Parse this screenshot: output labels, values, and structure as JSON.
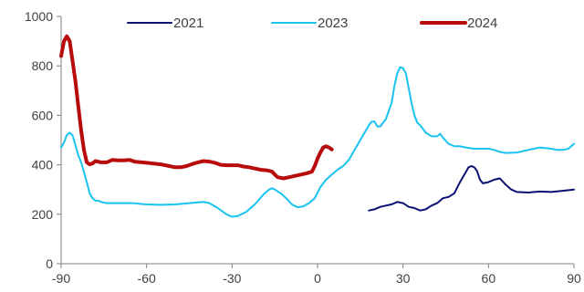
{
  "chart_data": {
    "type": "line",
    "title": "",
    "xlabel": "",
    "ylabel": "",
    "xlim": [
      -90,
      90
    ],
    "ylim": [
      0,
      1000
    ],
    "x_ticks": [
      -90,
      -60,
      -30,
      0,
      30,
      60,
      90
    ],
    "y_ticks": [
      0,
      200,
      400,
      600,
      800,
      1000
    ],
    "x_tick_labels": [
      "-90",
      "-60",
      "-30",
      "0",
      "30",
      "60",
      "90"
    ],
    "y_tick_labels": [
      "0",
      "200",
      "400",
      "600",
      "800",
      "1000"
    ],
    "grid": false,
    "legend_position": "top",
    "series": [
      {
        "name": "2021",
        "color": "#0a1172",
        "stroke_width": 2,
        "points": [
          [
            18,
            215
          ],
          [
            20,
            220
          ],
          [
            22,
            230
          ],
          [
            24,
            235
          ],
          [
            26,
            240
          ],
          [
            28,
            250
          ],
          [
            30,
            245
          ],
          [
            32,
            230
          ],
          [
            34,
            225
          ],
          [
            36,
            215
          ],
          [
            38,
            220
          ],
          [
            40,
            235
          ],
          [
            42,
            245
          ],
          [
            44,
            265
          ],
          [
            46,
            270
          ],
          [
            48,
            285
          ],
          [
            50,
            330
          ],
          [
            52,
            370
          ],
          [
            53,
            390
          ],
          [
            54,
            395
          ],
          [
            55,
            390
          ],
          [
            56,
            375
          ],
          [
            57,
            340
          ],
          [
            58,
            325
          ],
          [
            60,
            330
          ],
          [
            62,
            340
          ],
          [
            64,
            345
          ],
          [
            66,
            320
          ],
          [
            68,
            300
          ],
          [
            70,
            290
          ],
          [
            74,
            288
          ],
          [
            78,
            292
          ],
          [
            82,
            290
          ],
          [
            86,
            295
          ],
          [
            90,
            300
          ]
        ]
      },
      {
        "name": "2023",
        "color": "#19c3f0",
        "stroke_width": 2,
        "points": [
          [
            -90,
            470
          ],
          [
            -89,
            490
          ],
          [
            -88,
            520
          ],
          [
            -87,
            530
          ],
          [
            -86,
            520
          ],
          [
            -85,
            480
          ],
          [
            -84,
            440
          ],
          [
            -83,
            410
          ],
          [
            -82,
            370
          ],
          [
            -81,
            330
          ],
          [
            -80,
            285
          ],
          [
            -79,
            265
          ],
          [
            -78,
            255
          ],
          [
            -77,
            255
          ],
          [
            -76,
            250
          ],
          [
            -74,
            245
          ],
          [
            -70,
            245
          ],
          [
            -65,
            245
          ],
          [
            -60,
            240
          ],
          [
            -55,
            238
          ],
          [
            -50,
            240
          ],
          [
            -45,
            245
          ],
          [
            -40,
            250
          ],
          [
            -38,
            245
          ],
          [
            -35,
            225
          ],
          [
            -32,
            200
          ],
          [
            -30,
            190
          ],
          [
            -28,
            193
          ],
          [
            -25,
            210
          ],
          [
            -22,
            240
          ],
          [
            -19,
            280
          ],
          [
            -17,
            300
          ],
          [
            -16,
            305
          ],
          [
            -15,
            300
          ],
          [
            -13,
            285
          ],
          [
            -11,
            265
          ],
          [
            -9,
            240
          ],
          [
            -7,
            228
          ],
          [
            -5,
            232
          ],
          [
            -3,
            245
          ],
          [
            -1,
            265
          ],
          [
            1,
            310
          ],
          [
            3,
            340
          ],
          [
            5,
            360
          ],
          [
            7,
            380
          ],
          [
            9,
            395
          ],
          [
            11,
            420
          ],
          [
            13,
            460
          ],
          [
            15,
            500
          ],
          [
            17,
            540
          ],
          [
            18,
            560
          ],
          [
            19,
            575
          ],
          [
            20,
            575
          ],
          [
            21,
            555
          ],
          [
            22,
            555
          ],
          [
            24,
            585
          ],
          [
            26,
            650
          ],
          [
            27,
            720
          ],
          [
            28,
            770
          ],
          [
            29,
            795
          ],
          [
            30,
            790
          ],
          [
            31,
            770
          ],
          [
            32,
            710
          ],
          [
            33,
            650
          ],
          [
            34,
            600
          ],
          [
            35,
            570
          ],
          [
            36,
            560
          ],
          [
            38,
            530
          ],
          [
            40,
            515
          ],
          [
            42,
            515
          ],
          [
            43,
            525
          ],
          [
            44,
            510
          ],
          [
            46,
            485
          ],
          [
            48,
            475
          ],
          [
            50,
            475
          ],
          [
            52,
            470
          ],
          [
            55,
            465
          ],
          [
            60,
            465
          ],
          [
            62,
            460
          ],
          [
            64,
            452
          ],
          [
            66,
            448
          ],
          [
            70,
            450
          ],
          [
            74,
            460
          ],
          [
            78,
            470
          ],
          [
            82,
            465
          ],
          [
            84,
            460
          ],
          [
            86,
            460
          ],
          [
            88,
            465
          ],
          [
            89,
            475
          ],
          [
            90,
            485
          ]
        ]
      },
      {
        "name": "2024",
        "color": "#b80b0b",
        "stroke_width": 4,
        "points": [
          [
            -90,
            840
          ],
          [
            -89,
            900
          ],
          [
            -88,
            920
          ],
          [
            -87,
            900
          ],
          [
            -86,
            820
          ],
          [
            -85,
            740
          ],
          [
            -84,
            640
          ],
          [
            -83,
            540
          ],
          [
            -82,
            460
          ],
          [
            -81,
            410
          ],
          [
            -80,
            402
          ],
          [
            -79,
            405
          ],
          [
            -78,
            415
          ],
          [
            -76,
            410
          ],
          [
            -74,
            410
          ],
          [
            -72,
            420
          ],
          [
            -70,
            418
          ],
          [
            -68,
            418
          ],
          [
            -66,
            420
          ],
          [
            -64,
            412
          ],
          [
            -60,
            408
          ],
          [
            -55,
            402
          ],
          [
            -52,
            395
          ],
          [
            -50,
            390
          ],
          [
            -48,
            390
          ],
          [
            -46,
            395
          ],
          [
            -44,
            403
          ],
          [
            -42,
            410
          ],
          [
            -40,
            415
          ],
          [
            -38,
            413
          ],
          [
            -36,
            408
          ],
          [
            -34,
            400
          ],
          [
            -32,
            398
          ],
          [
            -30,
            398
          ],
          [
            -28,
            398
          ],
          [
            -26,
            393
          ],
          [
            -24,
            390
          ],
          [
            -22,
            385
          ],
          [
            -20,
            380
          ],
          [
            -18,
            378
          ],
          [
            -16,
            373
          ],
          [
            -15,
            360
          ],
          [
            -14,
            350
          ],
          [
            -12,
            345
          ],
          [
            -10,
            350
          ],
          [
            -8,
            355
          ],
          [
            -6,
            360
          ],
          [
            -4,
            365
          ],
          [
            -2,
            372
          ],
          [
            -1,
            395
          ],
          [
            0,
            425
          ],
          [
            1,
            450
          ],
          [
            2,
            470
          ],
          [
            3,
            475
          ],
          [
            4,
            470
          ],
          [
            5,
            462
          ]
        ]
      }
    ]
  }
}
